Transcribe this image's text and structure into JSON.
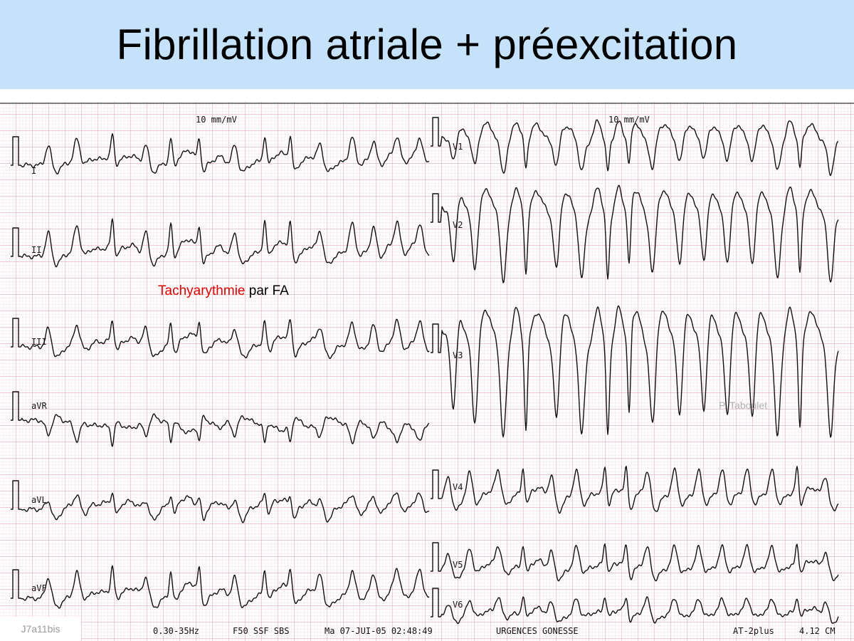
{
  "title": "Fibrillation atriale + préexcitation",
  "colors": {
    "banner": "#c6e2fb",
    "grid_minor": "#f2cfd8",
    "grid_major": "#dc9aaa",
    "trace": "#111111",
    "annotation_red": "#e00000"
  },
  "ecg": {
    "gain_left": "10 mm/mV",
    "gain_right": "10 mm/mV",
    "leads_left": [
      "I",
      "II",
      "III",
      "aVR",
      "aVL",
      "aVF"
    ],
    "leads_right": [
      "V1",
      "V2",
      "V3",
      "V4",
      "V5",
      "V6"
    ],
    "footer": {
      "filter": "0.30-35Hz",
      "settings": "F50 SSF SBS",
      "datetime": "Ma 07-JUI-05 02:48:49",
      "location": "URGENCES GONESSE",
      "device": "AT-2plus",
      "speed": "4.12 CM"
    }
  },
  "annotation": {
    "highlight": "Tachyarythmie",
    "rest": " par FA"
  },
  "watermark": "P. Taboulet",
  "slide_id": "J7a11bis"
}
